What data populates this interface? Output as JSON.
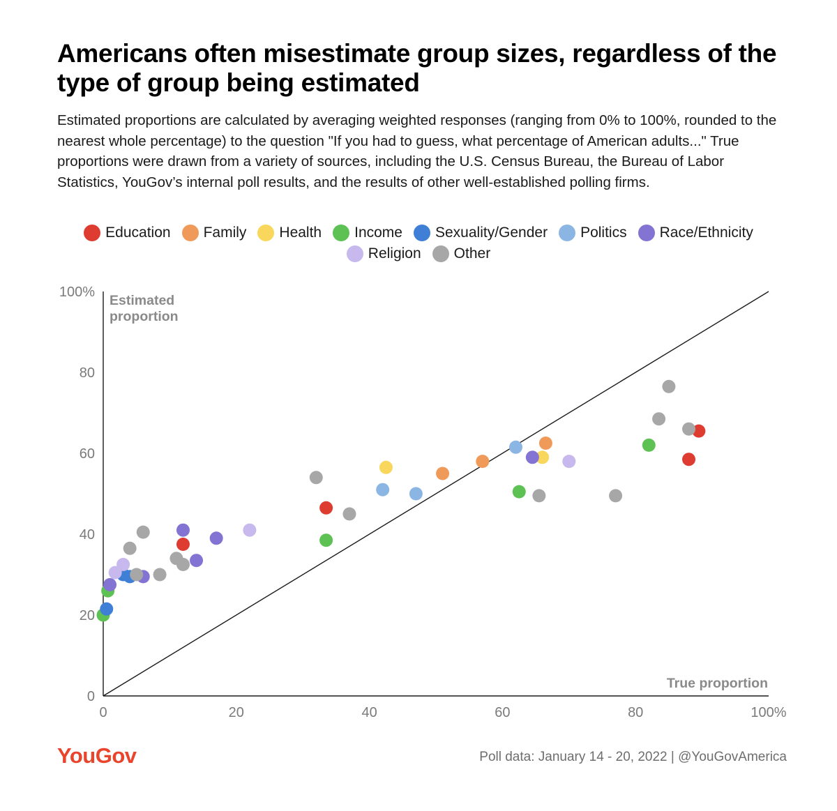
{
  "header": {
    "title": "Americans often misestimate group sizes, regardless of the type of group being estimated",
    "subtitle": "Estimated proportions are calculated by averaging weighted responses (ranging from 0% to 100%, rounded to the nearest whole percentage) to the question \"If you had to guess, what percentage of American adults...\" True proportions were drawn from a variety of sources, including the U.S. Census Bureau, the Bureau of Labor Statistics, YouGov’s internal poll results, and the results of other well-established polling firms."
  },
  "legend": [
    {
      "label": "Education",
      "color": "#de3b31"
    },
    {
      "label": "Family",
      "color": "#f09a5a"
    },
    {
      "label": "Health",
      "color": "#f8d75c"
    },
    {
      "label": "Income",
      "color": "#5dc253"
    },
    {
      "label": "Sexuality/Gender",
      "color": "#3f7fd6"
    },
    {
      "label": "Politics",
      "color": "#8bb6e4"
    },
    {
      "label": "Race/Ethnicity",
      "color": "#8373d3"
    },
    {
      "label": "Religion",
      "color": "#c7b8ee"
    },
    {
      "label": "Other",
      "color": "#a7a7a7"
    }
  ],
  "chart_data": {
    "type": "scatter",
    "xlabel": "True proportion",
    "ylabel": "Estimated proportion",
    "xlim": [
      0,
      100
    ],
    "ylim": [
      0,
      100
    ],
    "x_ticks": [
      "0",
      "20",
      "40",
      "60",
      "80",
      "100%"
    ],
    "y_ticks": [
      "0",
      "20",
      "40",
      "60",
      "80",
      "100%"
    ],
    "reference_line": "y = x",
    "series": [
      {
        "name": "Education",
        "color": "#de3b31",
        "points": [
          [
            12.0,
            37.5
          ],
          [
            33.5,
            46.5
          ],
          [
            88.0,
            58.5
          ],
          [
            89.5,
            65.5
          ]
        ]
      },
      {
        "name": "Family",
        "color": "#f09a5a",
        "points": [
          [
            51.0,
            55.0
          ],
          [
            57.0,
            58.0
          ],
          [
            66.5,
            62.5
          ]
        ]
      },
      {
        "name": "Health",
        "color": "#f8d75c",
        "points": [
          [
            42.5,
            56.5
          ],
          [
            66.0,
            59.0
          ]
        ]
      },
      {
        "name": "Income",
        "color": "#5dc253",
        "points": [
          [
            0.0,
            20.0
          ],
          [
            0.7,
            26.0
          ],
          [
            33.5,
            38.5
          ],
          [
            62.5,
            50.5
          ],
          [
            82.0,
            62.0
          ]
        ]
      },
      {
        "name": "Sexuality/Gender",
        "color": "#3f7fd6",
        "points": [
          [
            0.5,
            21.5
          ],
          [
            3.0,
            30.0
          ],
          [
            4.0,
            29.5
          ]
        ]
      },
      {
        "name": "Politics",
        "color": "#8bb6e4",
        "points": [
          [
            42.0,
            51.0
          ],
          [
            47.0,
            50.0
          ],
          [
            62.0,
            61.5
          ]
        ]
      },
      {
        "name": "Race/Ethnicity",
        "color": "#8373d3",
        "points": [
          [
            1.0,
            27.5
          ],
          [
            6.0,
            29.5
          ],
          [
            12.0,
            41.0
          ],
          [
            14.0,
            33.5
          ],
          [
            17.0,
            39.0
          ],
          [
            64.5,
            59.0
          ]
        ]
      },
      {
        "name": "Religion",
        "color": "#c7b8ee",
        "points": [
          [
            1.8,
            30.5
          ],
          [
            3.0,
            32.5
          ],
          [
            22.0,
            41.0
          ],
          [
            70.0,
            58.0
          ]
        ]
      },
      {
        "name": "Other",
        "color": "#a7a7a7",
        "points": [
          [
            4.0,
            36.5
          ],
          [
            6.0,
            40.5
          ],
          [
            5.0,
            30.0
          ],
          [
            8.5,
            30.0
          ],
          [
            11.0,
            34.0
          ],
          [
            12.0,
            32.5
          ],
          [
            32.0,
            54.0
          ],
          [
            37.0,
            45.0
          ],
          [
            65.5,
            49.5
          ],
          [
            77.0,
            49.5
          ],
          [
            83.5,
            68.5
          ],
          [
            85.0,
            76.5
          ],
          [
            88.0,
            66.0
          ]
        ]
      }
    ]
  },
  "footer": {
    "logo": "YouGov",
    "source": "Poll data: January 14 - 20, 2022 | @YouGovAmerica"
  }
}
